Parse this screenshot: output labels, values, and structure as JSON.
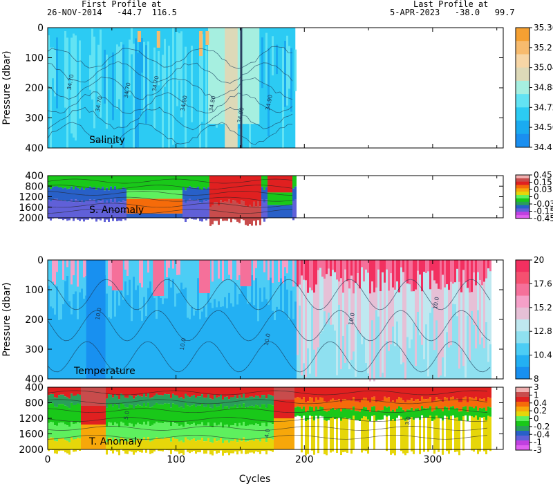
{
  "header": {
    "first_label": "First Profile at",
    "first_value": "26-NOV-2014   -44.7  116.5",
    "last_label": "Last Profile at",
    "last_value": "5-APR-2023   -38.0   99.7"
  },
  "chart_data": [
    {
      "type": "heatmap",
      "panel": "salinity",
      "title": "Salinity",
      "ylabel": "Pressure (dbar)",
      "xlim": [
        0,
        355
      ],
      "ylim": [
        0,
        400
      ],
      "y_inverted": true,
      "xticks": [
        0,
        100,
        200,
        300
      ],
      "yticks": [
        0,
        100,
        200,
        300,
        400
      ],
      "data_x_range": [
        0,
        193
      ],
      "contour_labels": [
        "34.70",
        "34.70",
        "34.70",
        "34.70",
        "34.80",
        "34.80",
        "34.90",
        "34.90"
      ],
      "colorbar": {
        "labels": [
          "35.36",
          "35.2",
          "35.04",
          "34.88",
          "34.72",
          "34.56",
          "34.4"
        ],
        "colors": [
          "#f5a032",
          "#f7bb6e",
          "#f7d6a6",
          "#ddd9b8",
          "#a6efe0",
          "#62e3f3",
          "#2ccbf3",
          "#1aabf0",
          "#1a8ff0"
        ]
      }
    },
    {
      "type": "heatmap",
      "panel": "salinity_anomaly",
      "title": "S. Anomaly",
      "xlim": [
        0,
        355
      ],
      "ylim": [
        400,
        2000
      ],
      "y_inverted": true,
      "yticks": [
        400,
        800,
        1200,
        1600,
        2000
      ],
      "data_x_range": [
        0,
        193
      ],
      "colorbar": {
        "labels": [
          "0.45",
          "0.15",
          "0.03",
          "0",
          "-0.03",
          "-0.15",
          "-0.45"
        ],
        "colors": [
          "#f0b0b0",
          "#c84c4c",
          "#e02020",
          "#f56b0a",
          "#f7a70a",
          "#e6d60a",
          "#5ef05e",
          "#19c819",
          "#2a9e5a",
          "#2860c8",
          "#6060d8",
          "#c040e0",
          "#e060f0"
        ]
      }
    },
    {
      "type": "heatmap",
      "panel": "temperature",
      "title": "Temperature",
      "ylabel": "Pressure (dbar)",
      "xlabel": "Cycles",
      "xlim": [
        0,
        355
      ],
      "ylim": [
        0,
        400
      ],
      "y_inverted": true,
      "xticks": [
        0,
        100,
        200,
        300
      ],
      "yticks": [
        0,
        100,
        200,
        300,
        400
      ],
      "data_x_range": [
        0,
        345
      ],
      "contour_labels": [
        "10.0",
        "10.0",
        "10.0",
        "10.0",
        "10.0"
      ],
      "colorbar": {
        "labels": [
          "20",
          "17.6",
          "15.2",
          "12.8",
          "10.4",
          "8"
        ],
        "colors": [
          "#f23060",
          "#f55070",
          "#f5709a",
          "#f5a0c8",
          "#e6c0d6",
          "#bfe8f0",
          "#8fe0f0",
          "#4ccdf5",
          "#23b0f3",
          "#1890f0"
        ]
      }
    },
    {
      "type": "heatmap",
      "panel": "temperature_anomaly",
      "title": "T. Anomaly",
      "xlabel": "Cycles",
      "xlim": [
        0,
        355
      ],
      "ylim": [
        400,
        2000
      ],
      "y_inverted": true,
      "xticks": [
        0,
        100,
        200,
        300
      ],
      "yticks": [
        400,
        800,
        1200,
        1600,
        2000
      ],
      "data_x_range": [
        0,
        345
      ],
      "contour_labels": [
        "5.0",
        "4.0",
        "3.0"
      ],
      "colorbar": {
        "labels": [
          "3",
          "1",
          "0.4",
          "0.2",
          "0",
          "-0.2",
          "-0.4",
          "-1",
          "-3"
        ],
        "colors": [
          "#f0b0b0",
          "#c84c4c",
          "#e02020",
          "#f56b0a",
          "#f7a70a",
          "#e6d60a",
          "#5ef05e",
          "#19c819",
          "#2a9e5a",
          "#2860c8",
          "#6060d8",
          "#c040e0",
          "#e060f0"
        ]
      }
    }
  ]
}
